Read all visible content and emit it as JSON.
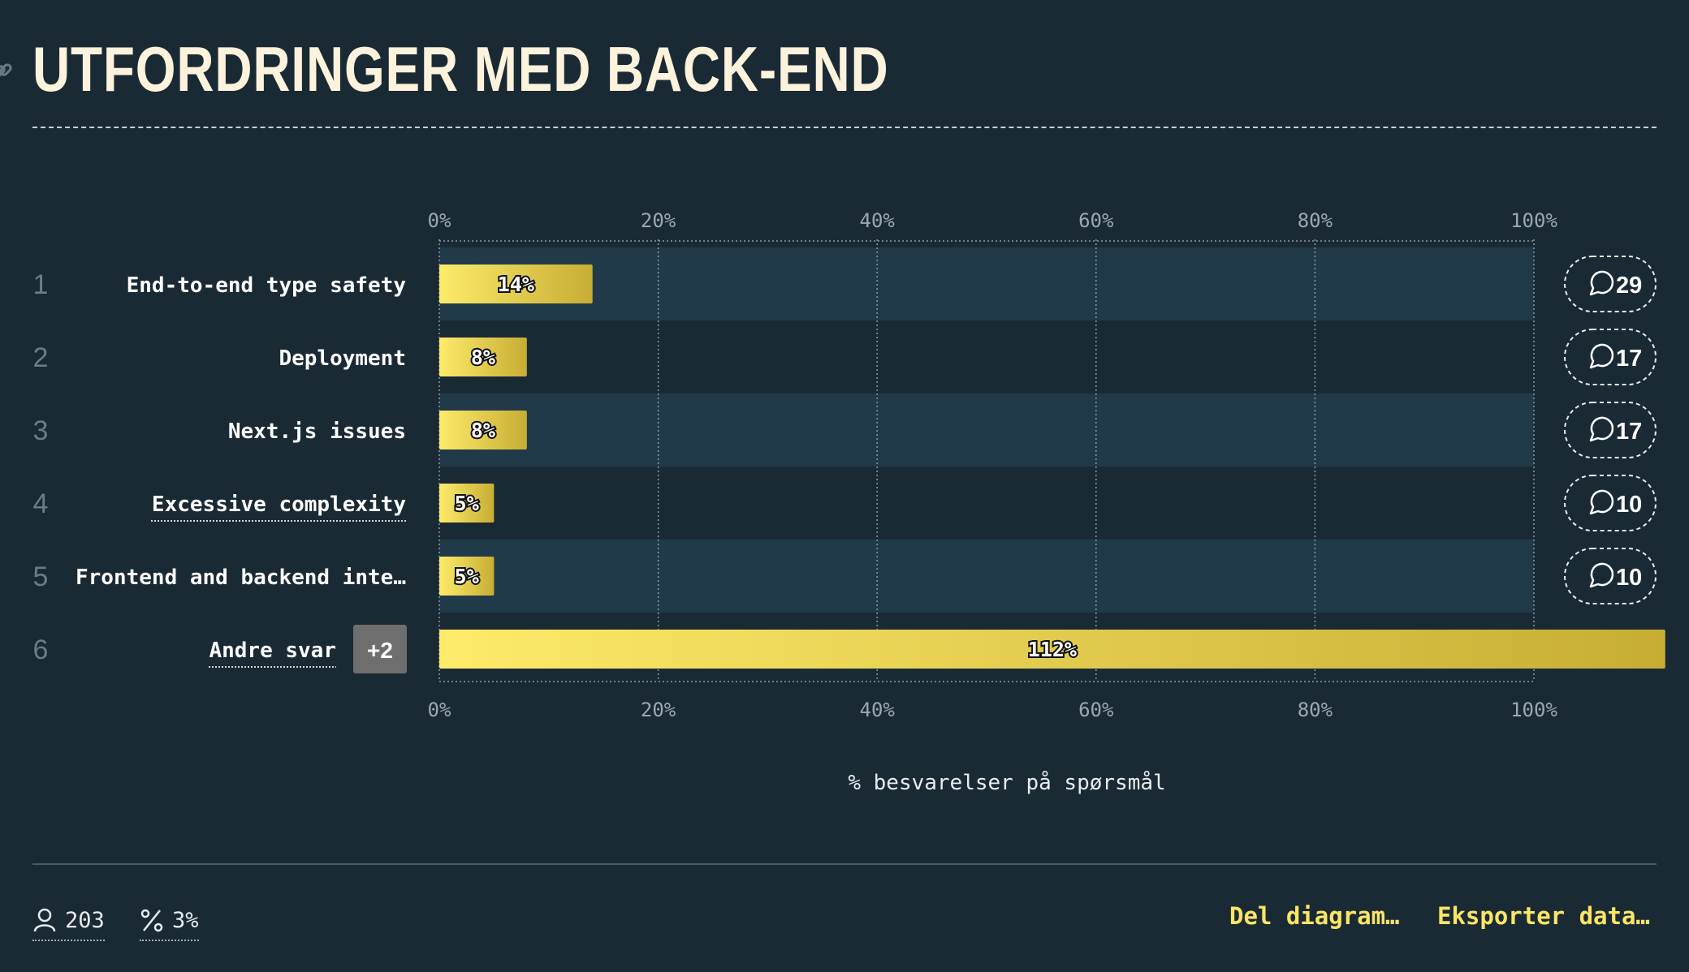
{
  "title": "UTFORDRINGER MED BACK-END",
  "chart_data": {
    "type": "bar",
    "orientation": "horizontal",
    "categories": [
      "End-to-end type safety",
      "Deployment",
      "Next.js issues",
      "Excessive complexity",
      "Frontend and backend inte…",
      "Andre svar"
    ],
    "ranks": [
      "1",
      "2",
      "3",
      "4",
      "5",
      "6"
    ],
    "values": [
      14,
      8,
      8,
      5,
      5,
      112
    ],
    "value_labels": [
      "14%",
      "8%",
      "8%",
      "5%",
      "5%",
      "112%"
    ],
    "comments": [
      "29",
      "17",
      "17",
      "10",
      "10",
      null
    ],
    "extra_badge": "+2",
    "xticks": [
      "0%",
      "20%",
      "40%",
      "60%",
      "80%",
      "100%"
    ],
    "xlim": [
      0,
      100
    ],
    "xlabel": "% besvarelser på spørsmål",
    "grid": true,
    "colors": {
      "bar_start": "#fdeb6a",
      "bar_end": "#c7ad34",
      "row_band": "#213a4a",
      "row_band_alt": "#1a2a35"
    }
  },
  "footer": {
    "respondents": "203",
    "percentage": "3%",
    "share_label": "Del diagram…",
    "export_label": "Eksporter data…"
  }
}
